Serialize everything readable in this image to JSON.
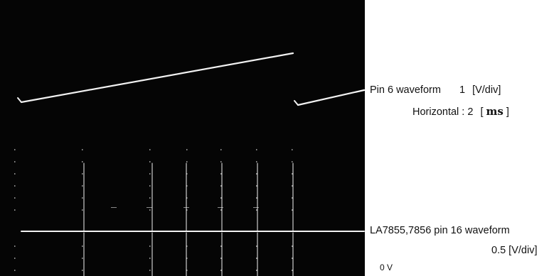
{
  "annotations": {
    "pin6": {
      "name": "Pin 6 waveform",
      "scale_value": "1",
      "scale_unit": "[V/div]"
    },
    "horizontal": {
      "label": "Horizontal : 2",
      "bracket_open": "[",
      "unit": "ms",
      "bracket_close": "]"
    },
    "pin16": {
      "name": "LA7855,7856 pin 16 waveform",
      "scale": "0.5 [V/div]"
    },
    "zero_level": "0 V"
  },
  "colors": {
    "screen": "#050505",
    "trace": "#f2f2f2",
    "graticule": "#8a8a8a",
    "leader": "#ffffff"
  },
  "waveforms": [
    {
      "name": "pin 6",
      "shape": "sawtooth"
    },
    {
      "name": "pin 16",
      "shape": "flat-with-pulses"
    }
  ]
}
